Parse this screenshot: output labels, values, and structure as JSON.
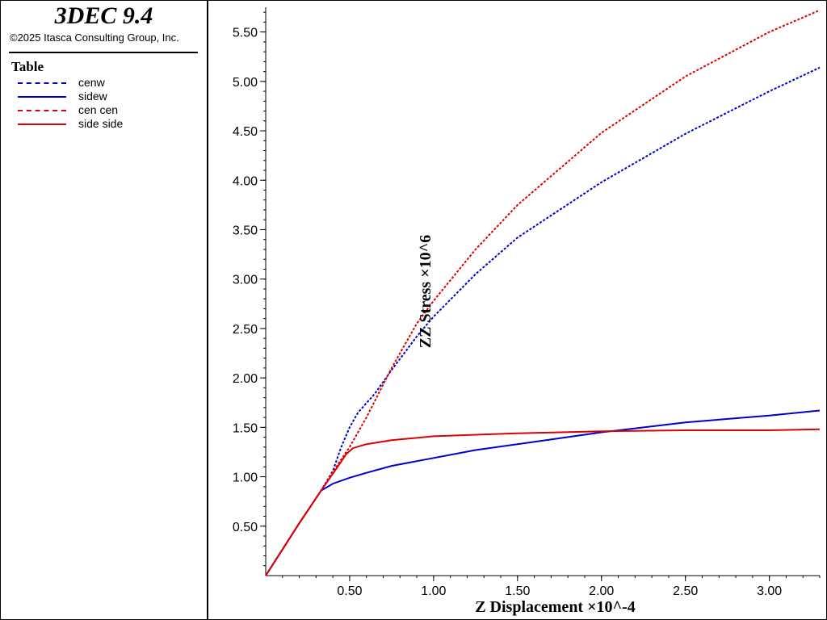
{
  "header": {
    "app_title": "3DEC 9.4",
    "copyright": "©2025 Itasca Consulting Group, Inc."
  },
  "legend": {
    "title": "Table",
    "entries": [
      {
        "label": "cenw",
        "color": "#0000cc",
        "dash": "dashed"
      },
      {
        "label": "sidew",
        "color": "#0000cc",
        "dash": "solid"
      },
      {
        "label": "cen cen",
        "color": "#dd0000",
        "dash": "dashed"
      },
      {
        "label": "side side",
        "color": "#dd0000",
        "dash": "solid"
      }
    ]
  },
  "chart_data": {
    "type": "line",
    "xlabel": "Z Displacement ×10^-4",
    "ylabel": "ZZ Stress ×10^6",
    "xlim": [
      0,
      3.3
    ],
    "ylim": [
      0,
      5.75
    ],
    "xticks": [
      "0.50",
      "1.00",
      "1.50",
      "2.00",
      "2.50",
      "3.00"
    ],
    "yticks": [
      "0.50",
      "1.00",
      "1.50",
      "2.00",
      "2.50",
      "3.00",
      "3.50",
      "4.00",
      "4.50",
      "5.00",
      "5.50"
    ],
    "grid": false,
    "legend_position": "left-panel",
    "series": [
      {
        "name": "cenw",
        "color": "#0000cc",
        "dash": "dashed",
        "x": [
          0,
          0.2,
          0.33,
          0.4,
          0.45,
          0.5,
          0.55,
          0.65,
          0.75,
          0.9,
          1.0,
          1.25,
          1.5,
          2.0,
          2.5,
          3.0,
          3.3
        ],
        "y": [
          0,
          0.53,
          0.86,
          1.06,
          1.3,
          1.5,
          1.65,
          1.84,
          2.08,
          2.42,
          2.62,
          3.05,
          3.42,
          3.98,
          4.47,
          4.9,
          5.14
        ]
      },
      {
        "name": "sidew",
        "color": "#0000cc",
        "dash": "solid",
        "x": [
          0,
          0.2,
          0.33,
          0.4,
          0.5,
          0.6,
          0.75,
          1.0,
          1.25,
          1.5,
          2.0,
          2.5,
          3.0,
          3.3
        ],
        "y": [
          0,
          0.53,
          0.86,
          0.93,
          0.99,
          1.04,
          1.11,
          1.19,
          1.27,
          1.33,
          1.45,
          1.55,
          1.62,
          1.67
        ]
      },
      {
        "name": "cen cen",
        "color": "#dd0000",
        "dash": "dashed",
        "x": [
          0,
          0.2,
          0.33,
          0.4,
          0.5,
          0.6,
          0.75,
          0.9,
          1.0,
          1.25,
          1.5,
          2.0,
          2.5,
          3.0,
          3.3
        ],
        "y": [
          0,
          0.53,
          0.86,
          1.05,
          1.3,
          1.6,
          2.1,
          2.55,
          2.78,
          3.3,
          3.75,
          4.48,
          5.05,
          5.5,
          5.72
        ]
      },
      {
        "name": "side side",
        "color": "#dd0000",
        "dash": "solid",
        "x": [
          0,
          0.2,
          0.33,
          0.42,
          0.48,
          0.52,
          0.6,
          0.75,
          1.0,
          1.5,
          2.0,
          2.5,
          3.0,
          3.3
        ],
        "y": [
          0,
          0.53,
          0.86,
          1.08,
          1.23,
          1.29,
          1.33,
          1.37,
          1.41,
          1.44,
          1.46,
          1.47,
          1.47,
          1.48
        ]
      }
    ]
  }
}
